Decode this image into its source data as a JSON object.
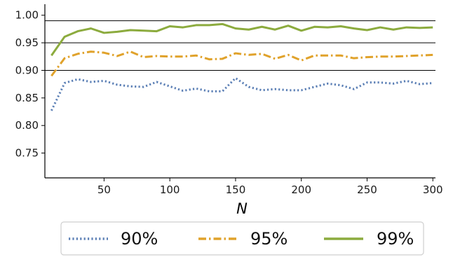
{
  "chart_data": {
    "type": "line",
    "xlabel": "N",
    "ylabel": "",
    "xlim": [
      5,
      302
    ],
    "ylim": [
      0.705,
      1.02
    ],
    "xticks": [
      50,
      100,
      150,
      200,
      250,
      300
    ],
    "xtick_labels": [
      "50",
      "100",
      "150",
      "200",
      "250",
      "300"
    ],
    "yticks": [
      0.75,
      0.8,
      0.85,
      0.9,
      0.95,
      1.0
    ],
    "ytick_labels": [
      "0.75",
      "0.80",
      "0.85",
      "0.90",
      "0.95",
      "1.00"
    ],
    "reference_lines": [
      0.9,
      0.95,
      0.99
    ],
    "x": [
      10,
      20,
      30,
      40,
      50,
      60,
      70,
      80,
      90,
      100,
      110,
      120,
      130,
      140,
      150,
      160,
      170,
      180,
      190,
      200,
      210,
      220,
      230,
      240,
      250,
      260,
      270,
      280,
      290,
      300
    ],
    "series": [
      {
        "name": "90%",
        "color": "#5b7fb5",
        "dash": "dotted",
        "values": [
          0.827,
          0.877,
          0.884,
          0.879,
          0.881,
          0.874,
          0.871,
          0.87,
          0.879,
          0.871,
          0.863,
          0.867,
          0.862,
          0.862,
          0.886,
          0.87,
          0.864,
          0.866,
          0.864,
          0.864,
          0.87,
          0.876,
          0.873,
          0.866,
          0.878,
          0.878,
          0.876,
          0.881,
          0.875,
          0.877
        ]
      },
      {
        "name": "95%",
        "color": "#e0a22b",
        "dash": "dashdot",
        "values": [
          0.89,
          0.922,
          0.93,
          0.934,
          0.932,
          0.926,
          0.934,
          0.924,
          0.926,
          0.925,
          0.925,
          0.927,
          0.92,
          0.921,
          0.931,
          0.928,
          0.93,
          0.921,
          0.928,
          0.918,
          0.927,
          0.927,
          0.927,
          0.922,
          0.924,
          0.925,
          0.925,
          0.926,
          0.927,
          0.928
        ]
      },
      {
        "name": "99%",
        "color": "#8cab3e",
        "dash": "solid",
        "values": [
          0.927,
          0.961,
          0.971,
          0.976,
          0.968,
          0.97,
          0.973,
          0.972,
          0.971,
          0.98,
          0.978,
          0.982,
          0.982,
          0.984,
          0.976,
          0.974,
          0.979,
          0.974,
          0.981,
          0.972,
          0.979,
          0.978,
          0.98,
          0.976,
          0.973,
          0.978,
          0.974,
          0.978,
          0.977,
          0.978
        ]
      }
    ],
    "grid": false,
    "legend_position": "bottom"
  }
}
